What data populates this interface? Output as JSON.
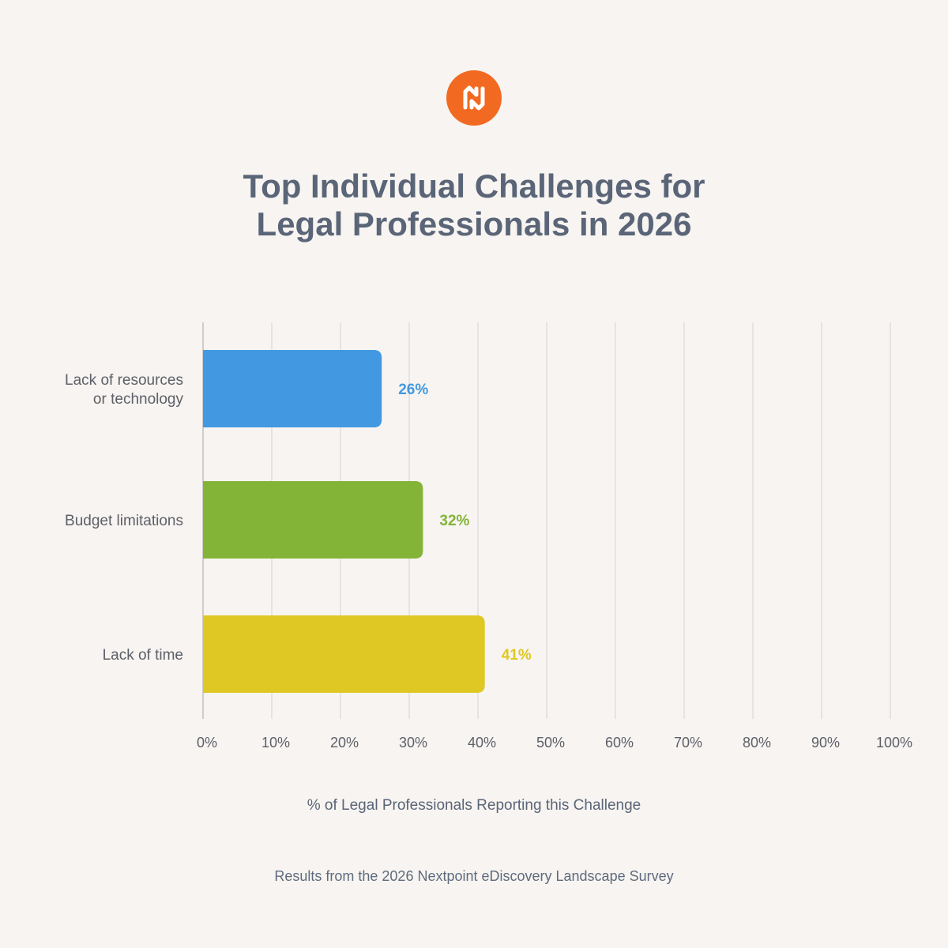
{
  "colors": {
    "background": "#f7f4f1",
    "logo": "#f26a21",
    "grid": "#e6e3e0",
    "axis": "#cfccc9"
  },
  "logo_icon": "nextpoint-logo-icon",
  "chart_data": {
    "type": "bar",
    "orientation": "horizontal",
    "title": [
      "Top Individual Challenges for",
      "Legal Professionals in 2026"
    ],
    "categories": [
      "Lack of resources or technology",
      "Budget limitations",
      "Lack of time"
    ],
    "category_lines": [
      [
        "Lack of resources",
        "or technology"
      ],
      [
        "Budget limitations"
      ],
      [
        "Lack of time"
      ]
    ],
    "values": [
      26,
      32,
      41
    ],
    "value_labels": [
      "26%",
      "32%",
      "41%"
    ],
    "bar_colors": [
      "#4299e1",
      "#84b437",
      "#dfc823"
    ],
    "xlabel": "% of Legal Professionals Reporting this Challenge",
    "xlim": [
      0,
      100
    ],
    "ticks": [
      0,
      10,
      20,
      30,
      40,
      50,
      60,
      70,
      80,
      90,
      100
    ],
    "tick_labels": [
      "0%",
      "10%",
      "20%",
      "30%",
      "40%",
      "50%",
      "60%",
      "70%",
      "80%",
      "90%",
      "100%"
    ],
    "grid": true,
    "legend": "none"
  },
  "footer": {
    "source": "Results from the 2026 Nextpoint eDiscovery Landscape Survey"
  }
}
